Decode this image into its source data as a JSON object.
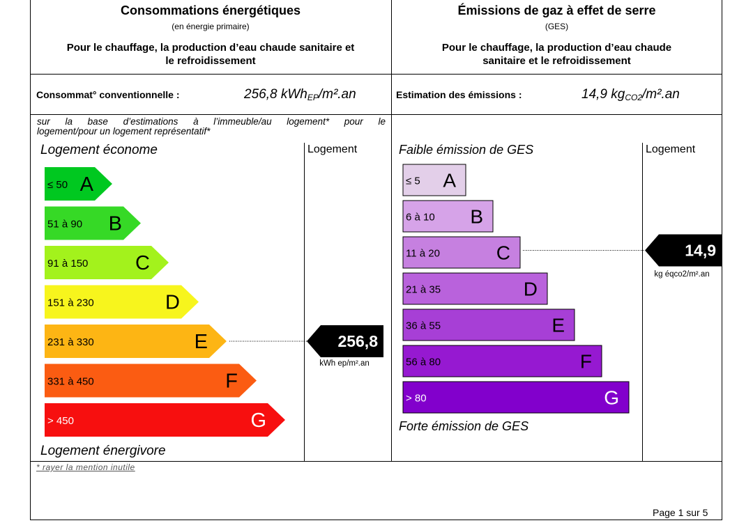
{
  "energy": {
    "title": "Consommations énergétiques",
    "subtitle": "(en énergie primaire)",
    "description_line1": "Pour le chauffage, la production d’eau chaude sanitaire et",
    "description_line2": "le refroidissement",
    "consumption_label": "Consommat° conventionnelle :",
    "consumption_value": "256,8 kWh",
    "consumption_sub": "EP",
    "consumption_unit": "/m².an",
    "basis_note_line1": "sur la base d’estimations à l’immeuble/au logement* pour le",
    "basis_note_line2": "logement/pour un logement représentatif*",
    "top_label": "Logement économe",
    "bottom_label": "Logement énergivore",
    "column_label": "Logement",
    "marker_value": "256,8",
    "marker_unit": "kWh ep/m².an",
    "marker_class": "E",
    "classes": [
      {
        "range": "≤ 50",
        "letter": "A",
        "color": "#00c820",
        "text_color": "#000000"
      },
      {
        "range": "51 à 90",
        "letter": "B",
        "color": "#36d926",
        "text_color": "#000000"
      },
      {
        "range": "91 à 150",
        "letter": "C",
        "color": "#a3f21c",
        "text_color": "#000000"
      },
      {
        "range": "151 à 230",
        "letter": "D",
        "color": "#f7f51d",
        "text_color": "#000000"
      },
      {
        "range": "231 à 330",
        "letter": "E",
        "color": "#fdb514",
        "text_color": "#000000"
      },
      {
        "range": "331 à 450",
        "letter": "F",
        "color": "#fb5c12",
        "text_color": "#000000"
      },
      {
        "range": "> 450",
        "letter": "G",
        "color": "#f70f0f",
        "text_color": "#ffffff"
      }
    ]
  },
  "ges": {
    "title": "Émissions de gaz à effet de serre",
    "subtitle": "(GES)",
    "description_line1": "Pour le chauffage, la production d’eau chaude",
    "description_line2": "sanitaire et le refroidissement",
    "emission_label": "Estimation des émissions :",
    "emission_value": "14,9 kg",
    "emission_sub": "CO2",
    "emission_unit": "/m².an",
    "top_label": "Faible émission de GES",
    "bottom_label": "Forte émission de GES",
    "column_label": "Logement",
    "marker_value": "14,9",
    "marker_unit": "kg éqco2/m².an",
    "marker_class": "C",
    "classes": [
      {
        "range": "≤ 5",
        "letter": "A",
        "color": "#e3cfe9",
        "text_color": "#000000"
      },
      {
        "range": "6 à 10",
        "letter": "B",
        "color": "#d6a3e8",
        "text_color": "#000000"
      },
      {
        "range": "11 à 20",
        "letter": "C",
        "color": "#c680e0",
        "text_color": "#000000"
      },
      {
        "range": "21 à 35",
        "letter": "D",
        "color": "#b962dc",
        "text_color": "#000000"
      },
      {
        "range": "36 à 55",
        "letter": "E",
        "color": "#a73fd6",
        "text_color": "#000000"
      },
      {
        "range": "56 à 80",
        "letter": "F",
        "color": "#9619d1",
        "text_color": "#000000"
      },
      {
        "range": "> 80",
        "letter": "G",
        "color": "#8200cc",
        "text_color": "#ffffff"
      }
    ]
  },
  "footnote": "* rayer la mention inutile",
  "page": "Page 1 sur 5"
}
